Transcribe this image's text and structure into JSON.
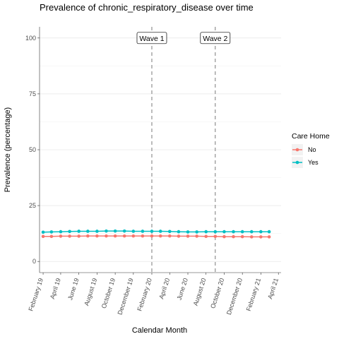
{
  "chart_data": {
    "type": "line",
    "title": "Prevalence of chronic_respiratory_disease over time",
    "xlabel": "Calendar Month",
    "ylabel": "Prevalence (percentage)",
    "ylim": [
      -5,
      105
    ],
    "yticks": [
      0,
      25,
      50,
      75,
      100
    ],
    "x": [
      "2019-02",
      "2019-03",
      "2019-04",
      "2019-05",
      "2019-06",
      "2019-07",
      "2019-08",
      "2019-09",
      "2019-10",
      "2019-11",
      "2019-12",
      "2020-01",
      "2020-02",
      "2020-03",
      "2020-04",
      "2020-05",
      "2020-06",
      "2020-07",
      "2020-08",
      "2020-09",
      "2020-10",
      "2020-11",
      "2020-12",
      "2021-01",
      "2021-02",
      "2021-03"
    ],
    "xticks": [
      "2019-02",
      "2019-04",
      "2019-06",
      "2019-08",
      "2019-10",
      "2019-12",
      "2020-02",
      "2020-04",
      "2020-06",
      "2020-08",
      "2020-10",
      "2020-12",
      "2021-02",
      "2021-04"
    ],
    "xtick_labels": [
      "February 19",
      "April 19",
      "June 19",
      "August 19",
      "October 19",
      "December 19",
      "February 20",
      "April 20",
      "June 20",
      "August 20",
      "October 20",
      "December 20",
      "February 21",
      "April 21"
    ],
    "xlim": [
      "2019-01-20",
      "2021-04-10"
    ],
    "series": [
      {
        "name": "No",
        "color": "#F8766D",
        "values": [
          11.2,
          11.2,
          11.3,
          11.3,
          11.3,
          11.4,
          11.4,
          11.4,
          11.4,
          11.4,
          11.4,
          11.4,
          11.4,
          11.4,
          11.4,
          11.3,
          11.3,
          11.3,
          11.2,
          11.2,
          11.1,
          11.1,
          11.1,
          11.0,
          11.0,
          11.0
        ]
      },
      {
        "name": "Yes",
        "color": "#00BFC4",
        "values": [
          13.1,
          13.2,
          13.3,
          13.4,
          13.5,
          13.5,
          13.5,
          13.6,
          13.6,
          13.6,
          13.5,
          13.5,
          13.5,
          13.5,
          13.4,
          13.3,
          13.2,
          13.2,
          13.3,
          13.3,
          13.3,
          13.3,
          13.3,
          13.3,
          13.3,
          13.3
        ]
      }
    ],
    "annotations": [
      {
        "label": "Wave 1",
        "x": "2020-02-01"
      },
      {
        "label": "Wave 2",
        "x": "2020-09-01"
      }
    ],
    "legend": {
      "title": "Care Home",
      "position": "right"
    },
    "grid": true
  }
}
